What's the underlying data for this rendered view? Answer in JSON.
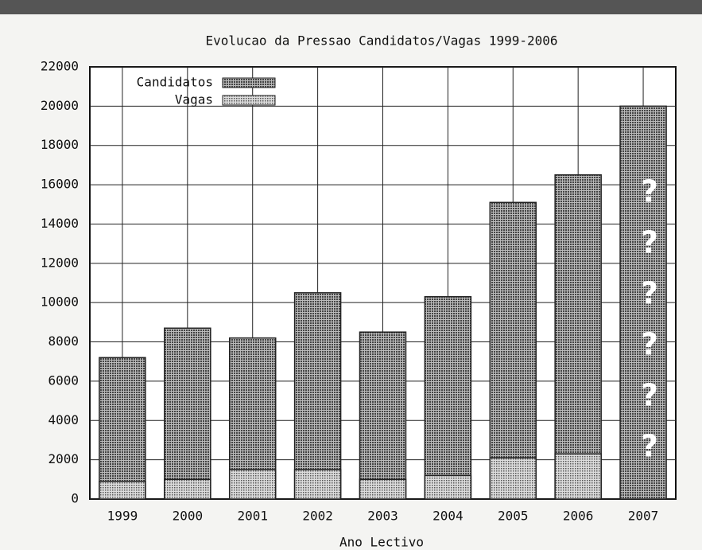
{
  "chart_data": {
    "type": "bar",
    "title": "Evolucao da Pressao Candidatos/Vagas 1999-2006",
    "x_label": "Ano Lectivo",
    "categories": [
      "1999",
      "2000",
      "2001",
      "2002",
      "2003",
      "2004",
      "2005",
      "2006",
      "2007"
    ],
    "series": [
      {
        "name": "Candidatos",
        "color": "#6e6e6e",
        "values": [
          7200,
          8700,
          8200,
          10500,
          8500,
          10300,
          15100,
          16500,
          20000
        ]
      },
      {
        "name": "Vagas",
        "color": "#9a9a9a",
        "values": [
          900,
          1000,
          1500,
          1500,
          1000,
          1200,
          2100,
          2300,
          null
        ]
      }
    ],
    "annotations": [
      "?",
      "?",
      "?",
      "?",
      "?",
      "?"
    ],
    "ylim": [
      0,
      22000
    ],
    "yticks": [
      0,
      2000,
      4000,
      6000,
      8000,
      10000,
      12000,
      14000,
      16000,
      18000,
      20000,
      22000
    ],
    "grid": true,
    "legend": "upper left"
  }
}
